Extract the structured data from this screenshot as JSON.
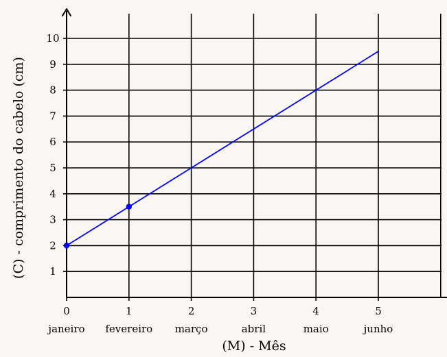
{
  "chart_data": {
    "type": "line",
    "xlabel": "(M) - Mês",
    "ylabel": "(C) - comprimento do cabelo (cm)",
    "x_ticks": [
      "0",
      "1",
      "2",
      "3",
      "4",
      "5"
    ],
    "categories": [
      "janeiro",
      "fevereiro",
      "março",
      "abril",
      "maio",
      "junho"
    ],
    "y_ticks": [
      "1",
      "2",
      "3",
      "4",
      "5",
      "6",
      "7",
      "8",
      "9",
      "10"
    ],
    "xlim": [
      0,
      6
    ],
    "ylim": [
      0,
      11
    ],
    "grid": true,
    "series": [
      {
        "x": [
          0,
          5
        ],
        "y": [
          2,
          9.5
        ],
        "color": "#0000ff"
      }
    ],
    "points": [
      {
        "x": 0,
        "y": 2,
        "color": "#0000ff"
      },
      {
        "x": 1,
        "y": 3.5,
        "color": "#0000ff"
      }
    ]
  }
}
